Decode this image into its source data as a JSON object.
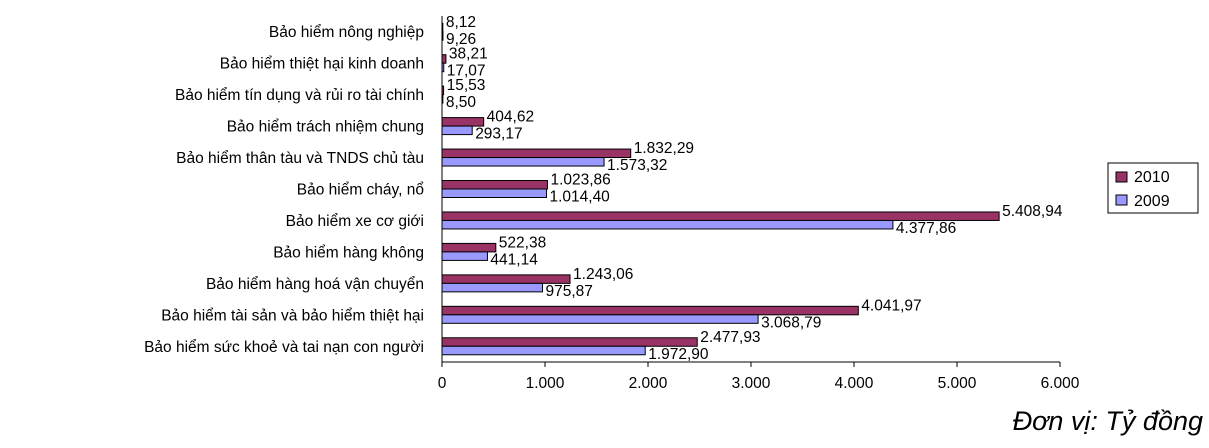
{
  "chart_data": {
    "type": "bar",
    "orientation": "horizontal",
    "categories": [
      "Bảo hiểm nông nghiệp",
      "Bảo hiểm thiệt hại kinh doanh",
      "Bảo hiểm tín dụng và rủi ro tài chính",
      "Bảo hiểm trách  nhiệm chung",
      "Bảo hiểm thân tàu và TNDS chủ tàu",
      "Bảo hiểm cháy, nổ",
      "Bảo hiểm xe cơ giới",
      "Bảo hiểm hàng không",
      "Bảo hiểm hàng hoá vận chuyển",
      "Bảo hiểm tài sản và bảo hiểm thiệt hại",
      "Bảo hiểm sức khoẻ và tai nạn con người"
    ],
    "series": [
      {
        "name": "2010",
        "color": "#993366",
        "values": [
          8.12,
          38.21,
          15.53,
          404.62,
          1832.29,
          1023.86,
          5408.94,
          522.38,
          1243.06,
          4041.97,
          2477.93
        ],
        "labels": [
          "8,12",
          "38,21",
          "15,53",
          "404,62",
          "1.832,29",
          "1.023,86",
          "5.408,94",
          "522,38",
          "1.243,06",
          "4.041,97",
          "2.477,93"
        ]
      },
      {
        "name": "2009",
        "color": "#9999FF",
        "values": [
          9.26,
          17.07,
          8.5,
          293.17,
          1573.32,
          1014.4,
          4377.86,
          441.14,
          975.87,
          3068.79,
          1972.9
        ],
        "labels": [
          "9,26",
          "17,07",
          "8,50",
          "293,17",
          "1.573,32",
          "1.014,40",
          "4.377,86",
          "441,14",
          "975,87",
          "3.068,79",
          "1.972,90"
        ]
      }
    ],
    "xlim": [
      0,
      6000
    ],
    "xticks": [
      0,
      1000,
      2000,
      3000,
      4000,
      5000,
      6000
    ],
    "xtick_labels": [
      "0",
      "1.000",
      "2.000",
      "3.000",
      "4.000",
      "5.000",
      "6.000"
    ],
    "grid": false,
    "legend": {
      "placement": "right",
      "entries": [
        "2010",
        "2009"
      ]
    },
    "title": "",
    "xlabel": "",
    "ylabel": ""
  },
  "unit_note": "Đơn vị: Tỷ đồng"
}
